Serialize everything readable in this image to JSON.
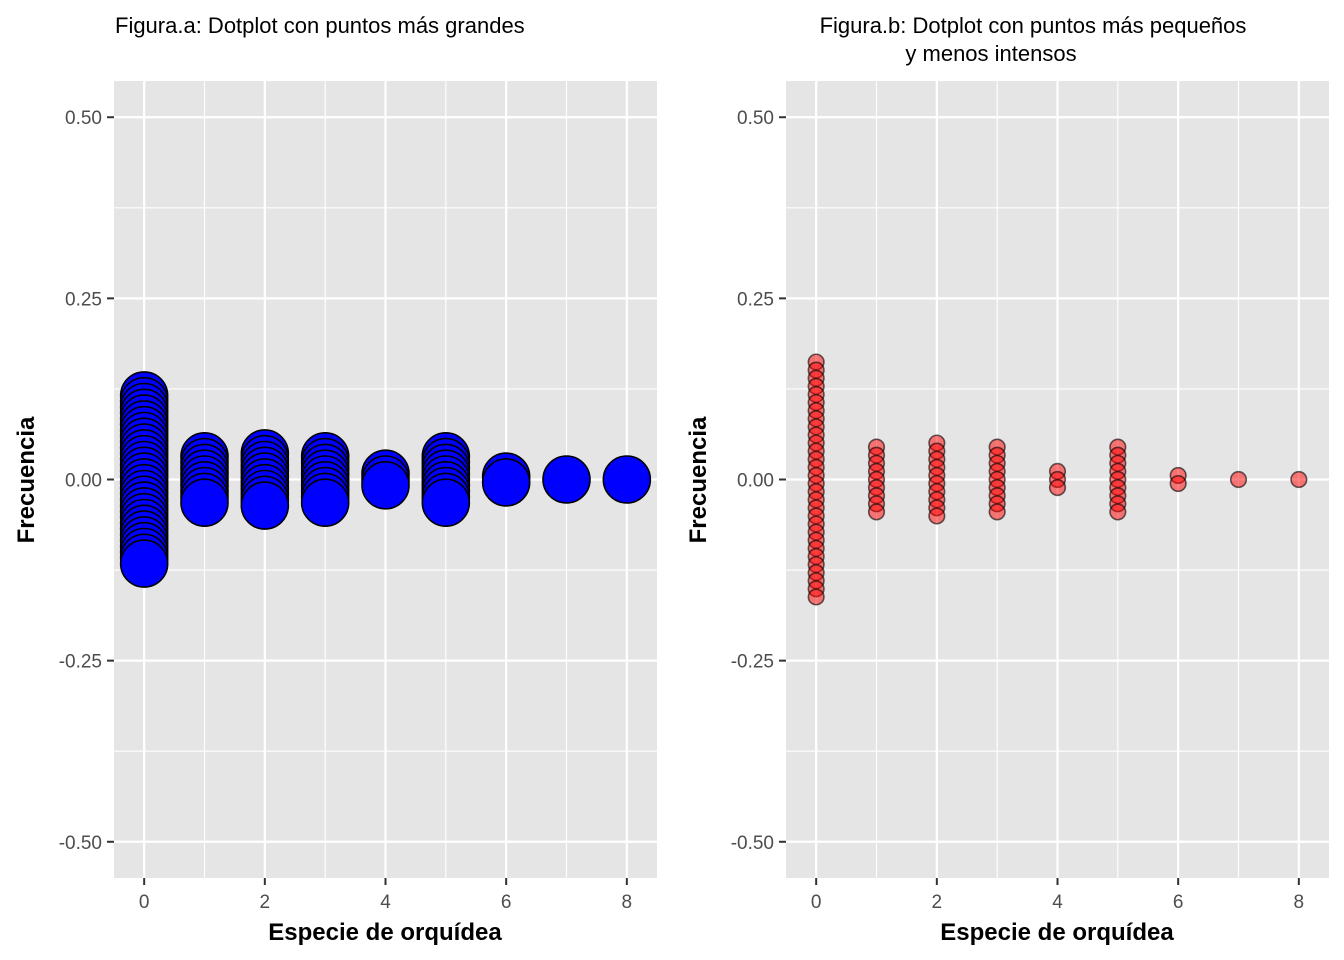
{
  "chart_data": [
    {
      "type": "dotplot",
      "title": "Figura.a: Dotplot con puntos más grandes",
      "xlabel": "Especie de orquídea",
      "ylabel": "Frecuencia",
      "xlim": [
        -0.5,
        8.5
      ],
      "ylim": [
        -0.55,
        0.55
      ],
      "x_ticks": [
        0,
        2,
        4,
        6,
        8
      ],
      "x_tick_labels": [
        "0",
        "2",
        "4",
        "6",
        "8"
      ],
      "y_ticks": [
        0.5,
        0.25,
        0.0,
        -0.25,
        -0.5
      ],
      "y_tick_labels": [
        "0.50",
        "0.25",
        "0.00",
        "-0.25",
        "-0.50"
      ],
      "grid": true,
      "dot_fill": "#0000ff",
      "dot_stroke": "#000000",
      "dot_opacity": 1,
      "binwidth": 1,
      "categories": [
        0,
        1,
        2,
        3,
        4,
        5,
        6,
        7,
        8
      ],
      "counts": [
        30,
        9,
        10,
        9,
        3,
        9,
        2,
        1,
        1
      ]
    },
    {
      "type": "dotplot",
      "title_lines": [
        "Figura.b: Dotplot con puntos más pequeños",
        "y menos intensos"
      ],
      "xlabel": "Especie de orquídea",
      "ylabel": "Frecuencia",
      "xlim": [
        -0.5,
        8.5
      ],
      "ylim": [
        -0.55,
        0.55
      ],
      "x_ticks": [
        0,
        2,
        4,
        6,
        8
      ],
      "x_tick_labels": [
        "0",
        "2",
        "4",
        "6",
        "8"
      ],
      "y_ticks": [
        0.5,
        0.25,
        0.0,
        -0.25,
        -0.5
      ],
      "y_tick_labels": [
        "0.50",
        "0.25",
        "0.00",
        "-0.25",
        "-0.50"
      ],
      "grid": true,
      "dot_fill": "#ff0000",
      "dot_stroke": "#000000",
      "dot_opacity": 0.5,
      "binwidth": 1,
      "categories": [
        0,
        1,
        2,
        3,
        4,
        5,
        6,
        7,
        8
      ],
      "counts": [
        30,
        9,
        10,
        9,
        3,
        9,
        2,
        1,
        1
      ]
    }
  ]
}
